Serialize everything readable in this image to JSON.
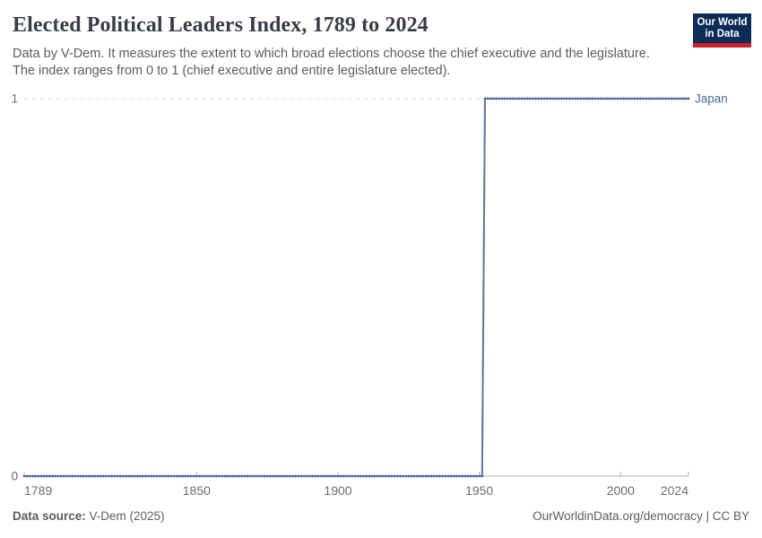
{
  "header": {
    "title": "Elected Political Leaders Index, 1789 to 2024",
    "subtitle_lines": [
      "Data by V-Dem. It measures the extent to which broad elections choose the chief executive and the legislature.",
      "The index ranges from 0 to 1 (chief executive and entire legislature elected)."
    ],
    "logo": {
      "line1": "Our World",
      "line2": "in Data",
      "bg_color": "#0d2d59",
      "accent_color": "#cb222e"
    }
  },
  "chart_data": {
    "type": "line",
    "title": "Elected Political Leaders Index, 1789 to 2024",
    "xlabel": "",
    "ylabel": "",
    "xlim": [
      1789,
      2024
    ],
    "ylim": [
      0,
      1
    ],
    "grid": "dashed horizontal gridline at y=1, solid axis at y=0",
    "legend_position": "right-of-line entity label",
    "x_ticks": [
      {
        "value": 1789,
        "label": "1789"
      },
      {
        "value": 1850,
        "label": "1850"
      },
      {
        "value": 1900,
        "label": "1900"
      },
      {
        "value": 1950,
        "label": "1950"
      },
      {
        "value": 2000,
        "label": "2000"
      },
      {
        "value": 2024,
        "label": "2024"
      }
    ],
    "y_ticks": [
      {
        "value": 0,
        "label": "0",
        "grid": "axis"
      },
      {
        "value": 1,
        "label": "1",
        "grid": "dashed"
      }
    ],
    "colors": {
      "gridline": "#dcdcdc",
      "axis": "#b0b0b0",
      "tick_label": "#6d6d6d"
    },
    "series": [
      {
        "name": "Japan",
        "color": "#4c6a9c",
        "marker_color": "#47639a",
        "connector_color": "#8fa0c0",
        "vertical_color": "#5f7aa7",
        "step": true,
        "points": [
          [
            1789,
            0
          ],
          [
            1951,
            0
          ],
          [
            1952,
            1
          ],
          [
            2024,
            1
          ]
        ]
      }
    ]
  },
  "footer": {
    "source_label": "Data source:",
    "source_value": " V-Dem (2025)",
    "credit": "OurWorldinData.org/democracy | CC BY"
  }
}
